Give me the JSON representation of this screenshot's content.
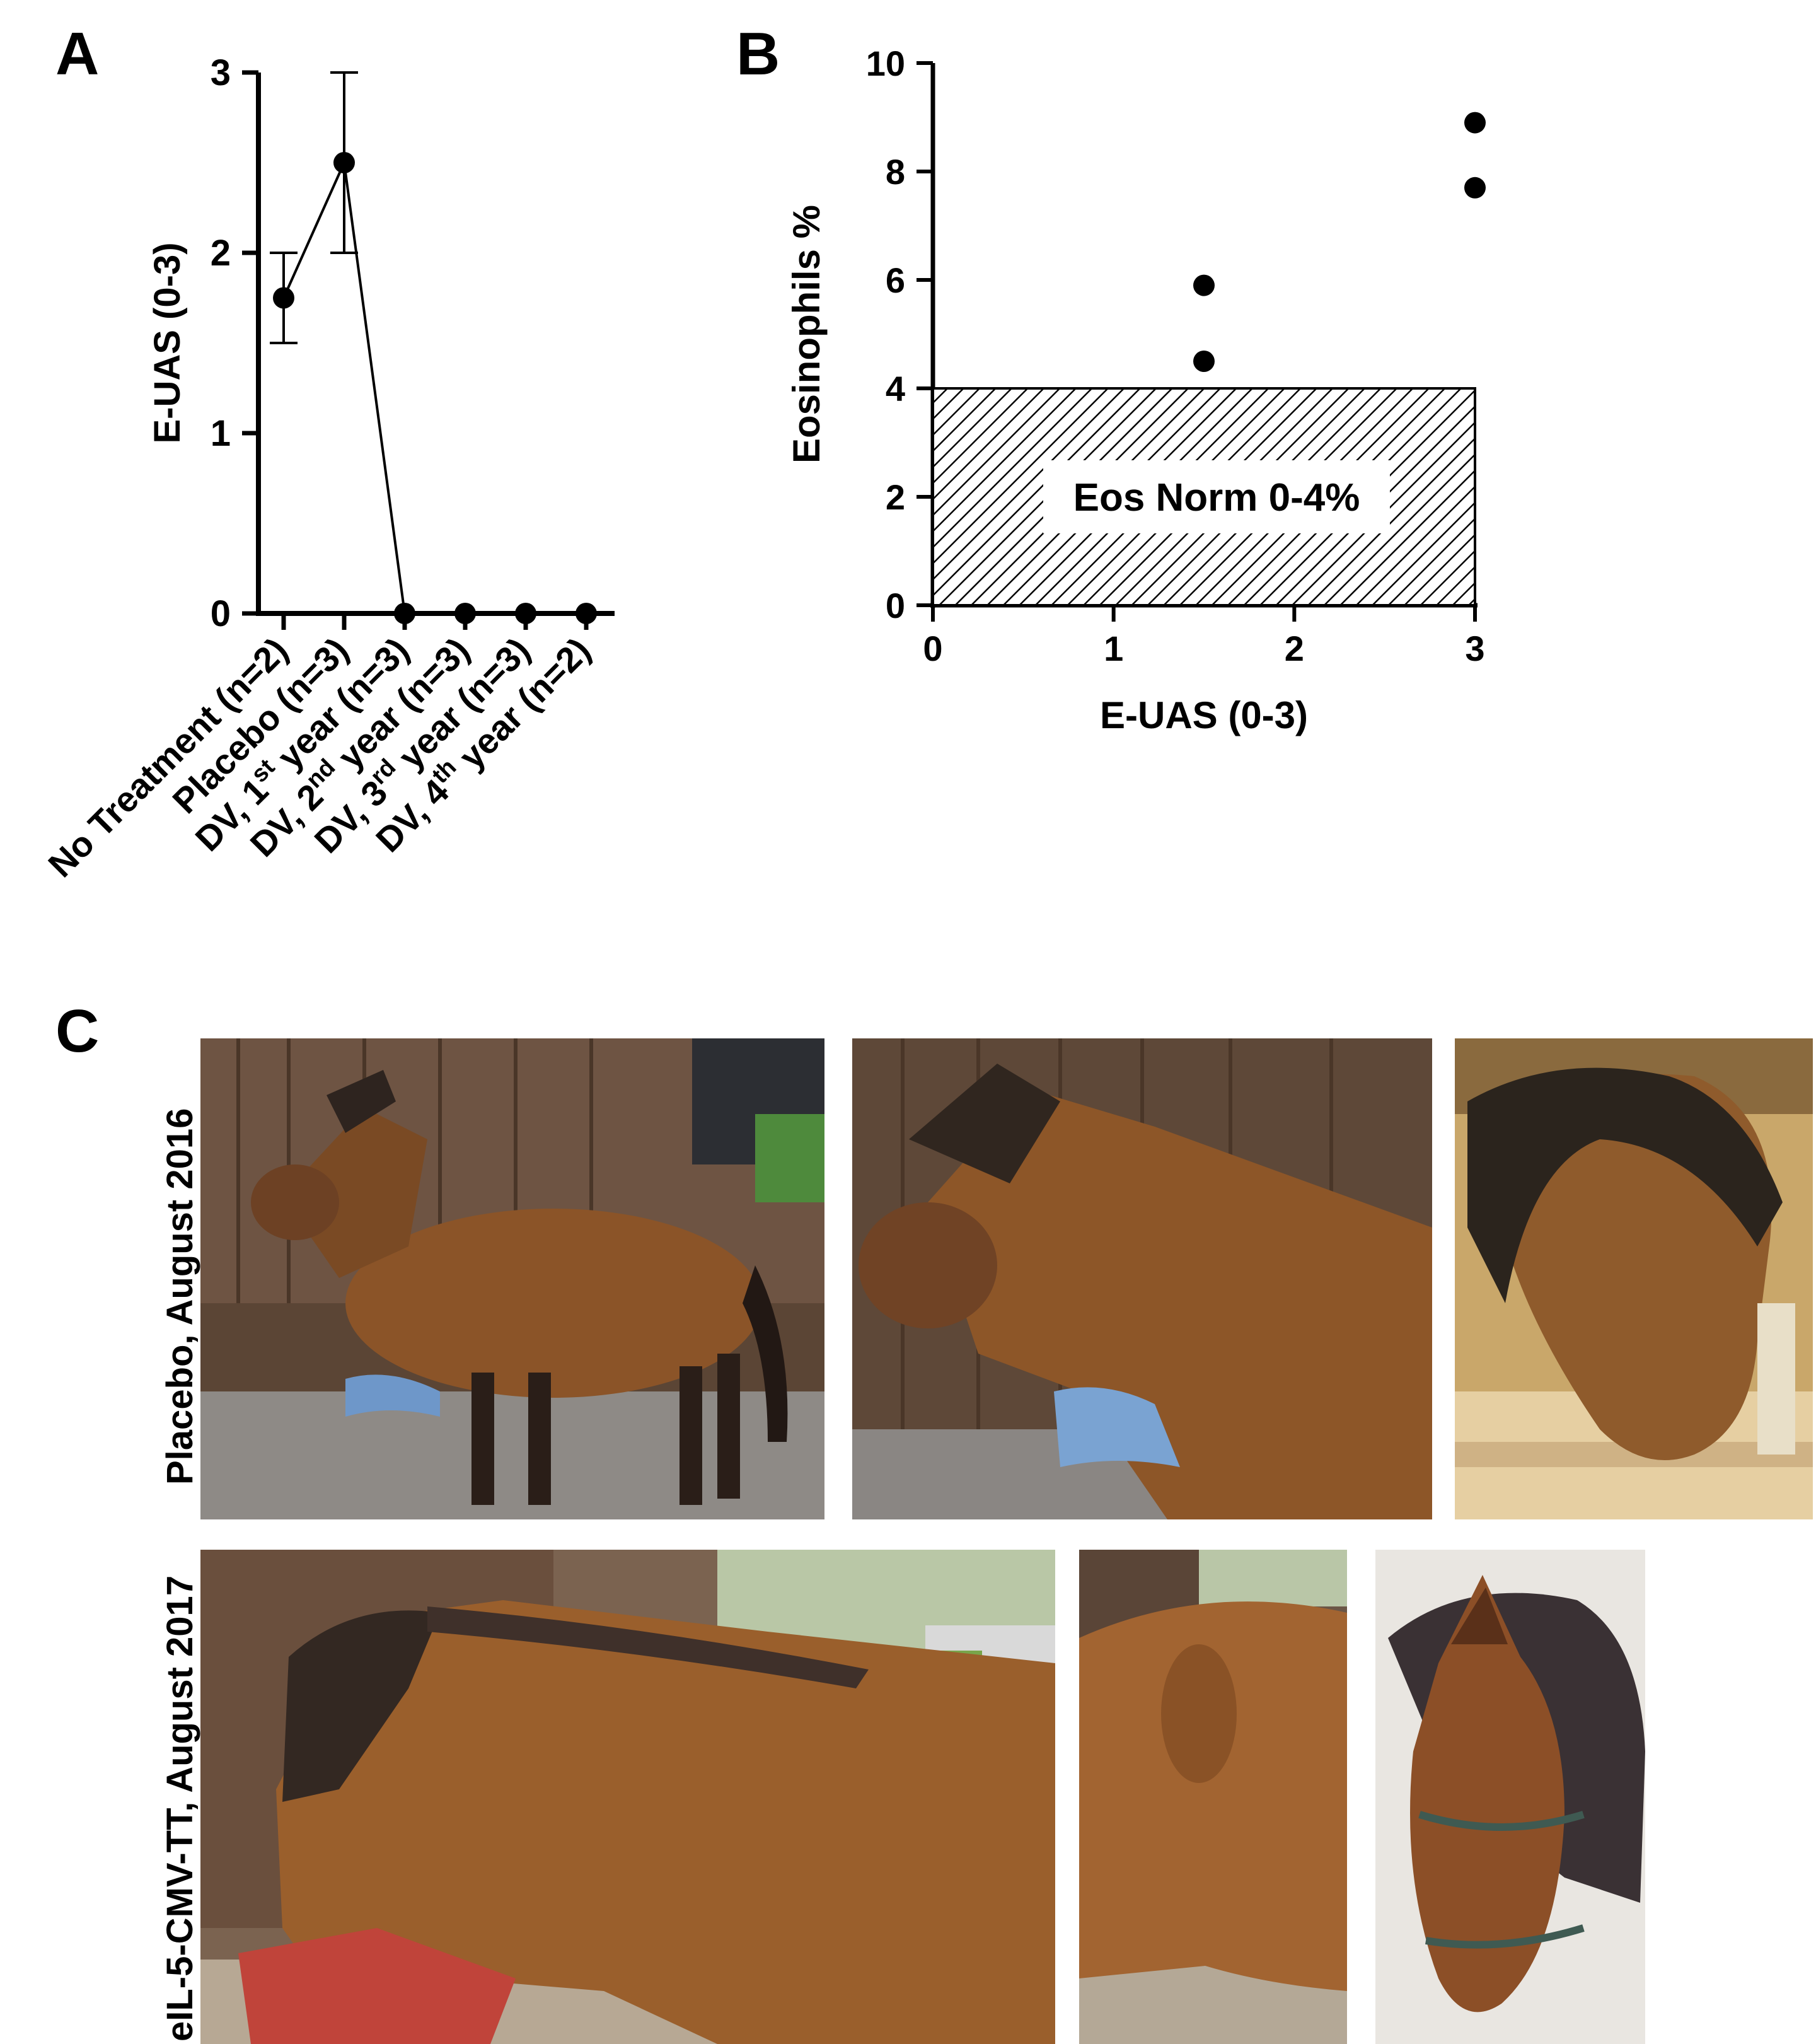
{
  "panels": {
    "a": "A",
    "b": "B",
    "c": "C"
  },
  "chart_data": [
    {
      "type": "line",
      "panel": "A",
      "title": "",
      "xlabel": "",
      "ylabel": "E-UAS (0-3)",
      "ylim": [
        0,
        3
      ],
      "yticks": [
        "0",
        "1",
        "2",
        "3"
      ],
      "categories": [
        {
          "main": "No Treatment (n=2)"
        },
        {
          "main": "Placebo (n=3)"
        },
        {
          "pre": "DV, 1",
          "sup": "st",
          "post": " year (n=3)"
        },
        {
          "pre": "DV, 2",
          "sup": "nd",
          "post": " year (n=3)"
        },
        {
          "pre": "DV, 3",
          "sup": "rd",
          "post": " year (n=3)"
        },
        {
          "pre": "DV, 4",
          "sup": "th",
          "post": " year (n=2)"
        }
      ],
      "values": [
        1.75,
        2.5,
        0,
        0,
        0,
        0
      ],
      "error_low": [
        1.5,
        2.0,
        0,
        0,
        0,
        0
      ],
      "error_high": [
        2.0,
        3.0,
        0,
        0,
        0,
        0
      ]
    },
    {
      "type": "scatter",
      "panel": "B",
      "title": "",
      "xlabel": "E-UAS (0-3)",
      "ylabel": "Eosinophils %",
      "xlim": [
        0,
        3
      ],
      "ylim": [
        0,
        10
      ],
      "xticks": [
        "0",
        "1",
        "2",
        "3"
      ],
      "yticks": [
        "0",
        "2",
        "4",
        "6",
        "8",
        "10"
      ],
      "points": [
        {
          "x": 1.5,
          "y": 5.9
        },
        {
          "x": 1.5,
          "y": 4.5
        },
        {
          "x": 3,
          "y": 8.9
        },
        {
          "x": 3,
          "y": 7.7
        }
      ],
      "shaded_region": {
        "x": [
          0,
          3
        ],
        "y": [
          0,
          4
        ],
        "label": "Eos Norm 0-4%"
      }
    }
  ],
  "photos": {
    "row1_label": "Placebo, August 2016",
    "row2_label": "eIL-5-CMV-TT, August 2017"
  }
}
